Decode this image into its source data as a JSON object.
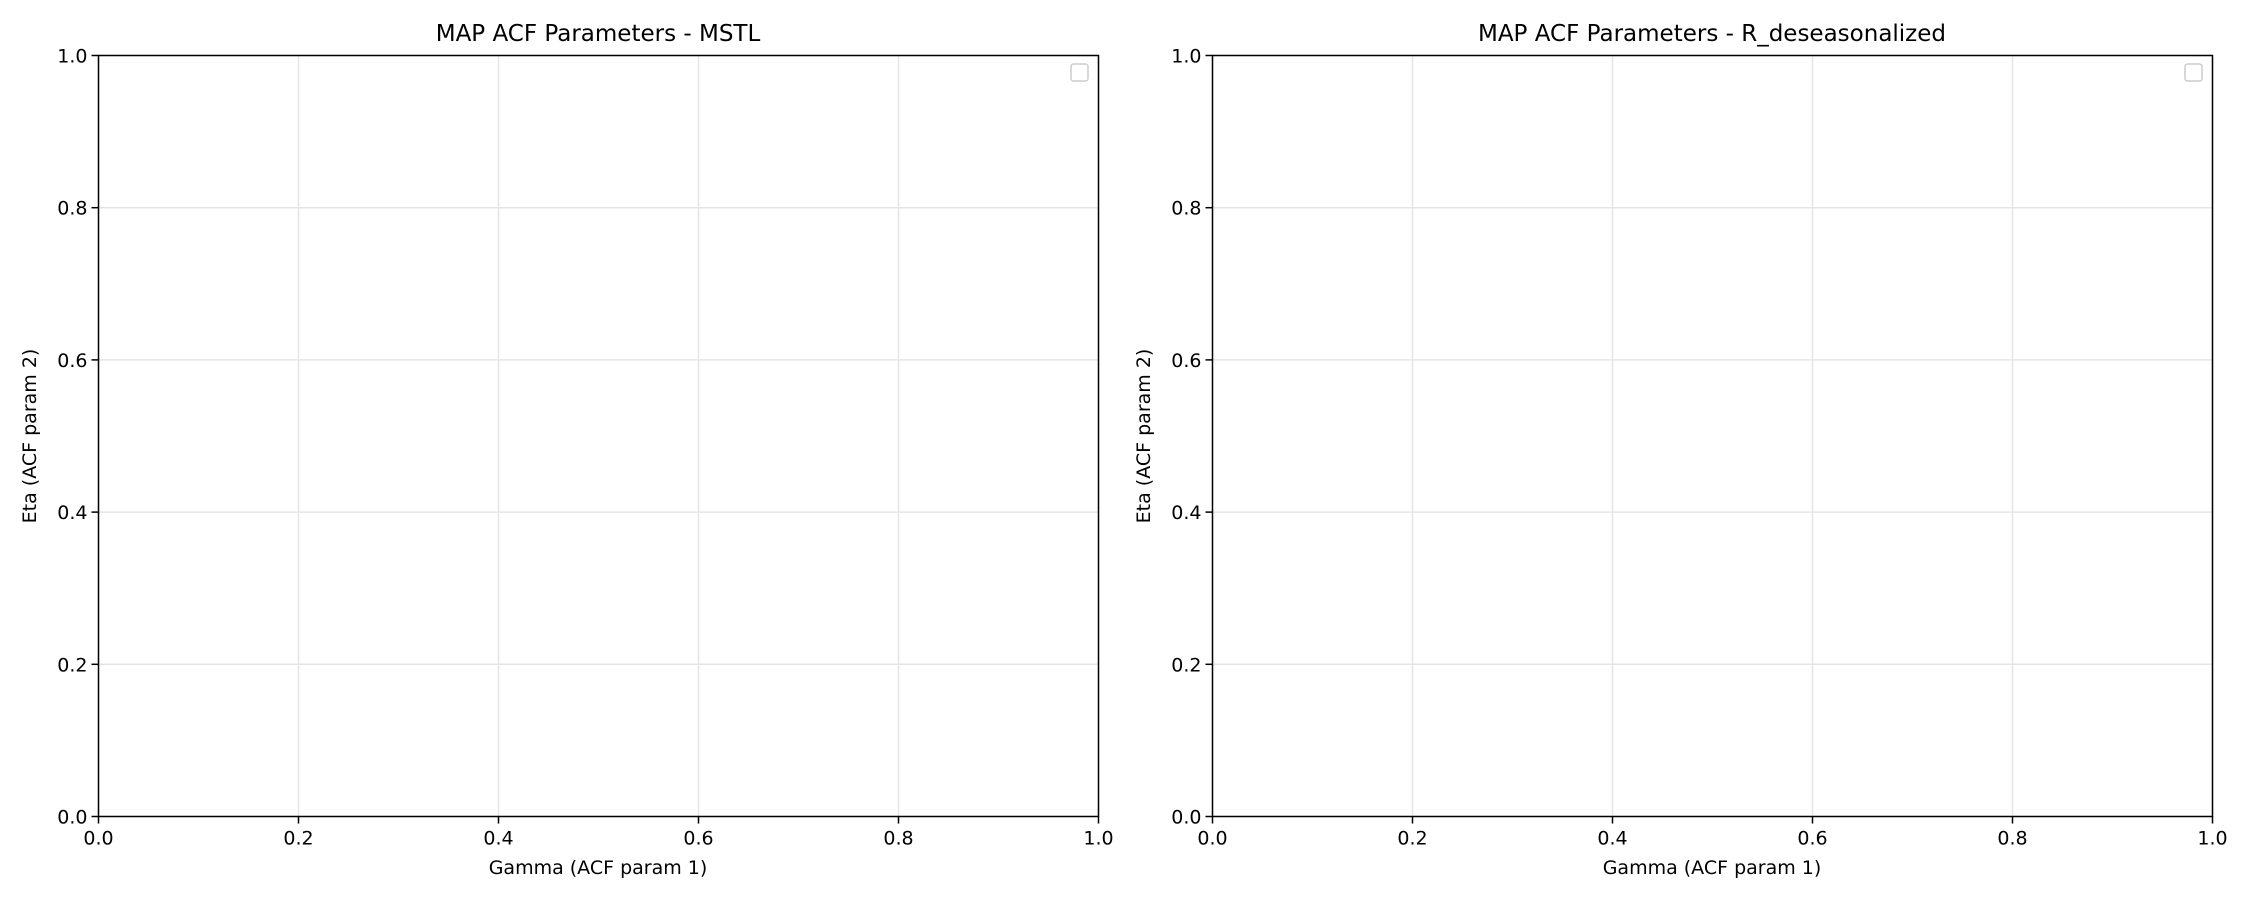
{
  "chart_data": [
    {
      "type": "scatter",
      "title": "MAP ACF Parameters - MSTL",
      "xlabel": "Gamma (ACF param 1)",
      "ylabel": "Eta (ACF param 2)",
      "xlim": [
        0.0,
        1.0
      ],
      "ylim": [
        0.0,
        1.0
      ],
      "x_ticks": [
        "0.0",
        "0.2",
        "0.4",
        "0.6",
        "0.8",
        "1.0"
      ],
      "y_ticks": [
        "0.0",
        "0.2",
        "0.4",
        "0.6",
        "0.8",
        "1.0"
      ],
      "grid": true,
      "legend": "top-right",
      "series": []
    },
    {
      "type": "scatter",
      "title": "MAP ACF Parameters - R_deseasonalized",
      "xlabel": "Gamma (ACF param 1)",
      "ylabel": "Eta (ACF param 2)",
      "xlim": [
        0.0,
        1.0
      ],
      "ylim": [
        0.0,
        1.0
      ],
      "x_ticks": [
        "0.0",
        "0.2",
        "0.4",
        "0.6",
        "0.8",
        "1.0"
      ],
      "y_ticks": [
        "0.0",
        "0.2",
        "0.4",
        "0.6",
        "0.8",
        "1.0"
      ],
      "grid": true,
      "legend": "top-right",
      "series": []
    }
  ],
  "colors": {
    "grid": "#e5e5e5",
    "spine": "#000000",
    "legend_border": "#cccccc",
    "text": "#000000",
    "background": "#ffffff"
  }
}
